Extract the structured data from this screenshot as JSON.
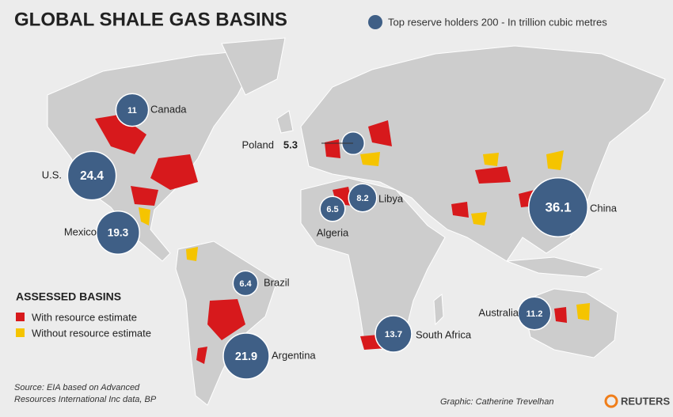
{
  "title": "GLOBAL SHALE GAS BASINS",
  "legend_top": "Top reserve holders 200 - In trillion cubic metres",
  "bubble_color": "#3f5f86",
  "reserves": [
    {
      "country": "Canada",
      "value": 11
    },
    {
      "country": "U.S.",
      "value": 24.4
    },
    {
      "country": "Mexico",
      "value": 19.3
    },
    {
      "country": "Brazil",
      "value": 6.4
    },
    {
      "country": "Argentina",
      "value": 21.9
    },
    {
      "country": "Algeria",
      "value": 6.5
    },
    {
      "country": "Libya",
      "value": 8.2
    },
    {
      "country": "Poland",
      "value": 5.3
    },
    {
      "country": "China",
      "value": 36.1
    },
    {
      "country": "South Africa",
      "value": 13.7
    },
    {
      "country": "Australia",
      "value": 11.2
    }
  ],
  "assessed_basins": {
    "title": "ASSESSED BASINS",
    "items": [
      {
        "label": "With resource estimate",
        "color": "#d7191c"
      },
      {
        "label": "Without resource estimate",
        "color": "#f5c400"
      }
    ]
  },
  "source": [
    "Source: EIA based on Advanced",
    "Resources International Inc data, BP"
  ],
  "credit": "Graphic: Catherine Trevelhan",
  "logo": "REUTERS"
}
